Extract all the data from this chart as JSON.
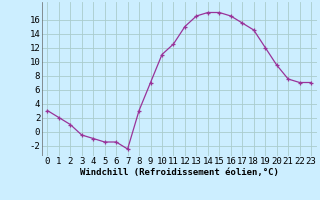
{
  "x": [
    0,
    1,
    2,
    3,
    4,
    5,
    6,
    7,
    8,
    9,
    10,
    11,
    12,
    13,
    14,
    15,
    16,
    17,
    18,
    19,
    20,
    21,
    22,
    23
  ],
  "y": [
    3,
    2,
    1,
    -0.5,
    -1,
    -1.5,
    -1.5,
    -2.5,
    3,
    7,
    11,
    12.5,
    15,
    16.5,
    17,
    17,
    16.5,
    15.5,
    14.5,
    12,
    9.5,
    7.5,
    7,
    7
  ],
  "line_color": "#993399",
  "marker": "+",
  "bg_color": "#cceeff",
  "grid_color": "#aacccc",
  "xlabel": "Windchill (Refroidissement éolien,°C)",
  "xlabel_fontsize": 6.5,
  "tick_fontsize": 6.5,
  "ylim": [
    -3.5,
    18.5
  ],
  "xlim": [
    -0.5,
    23.5
  ],
  "yticks": [
    -2,
    0,
    2,
    4,
    6,
    8,
    10,
    12,
    14,
    16
  ],
  "xticks": [
    0,
    1,
    2,
    3,
    4,
    5,
    6,
    7,
    8,
    9,
    10,
    11,
    12,
    13,
    14,
    15,
    16,
    17,
    18,
    19,
    20,
    21,
    22,
    23
  ]
}
